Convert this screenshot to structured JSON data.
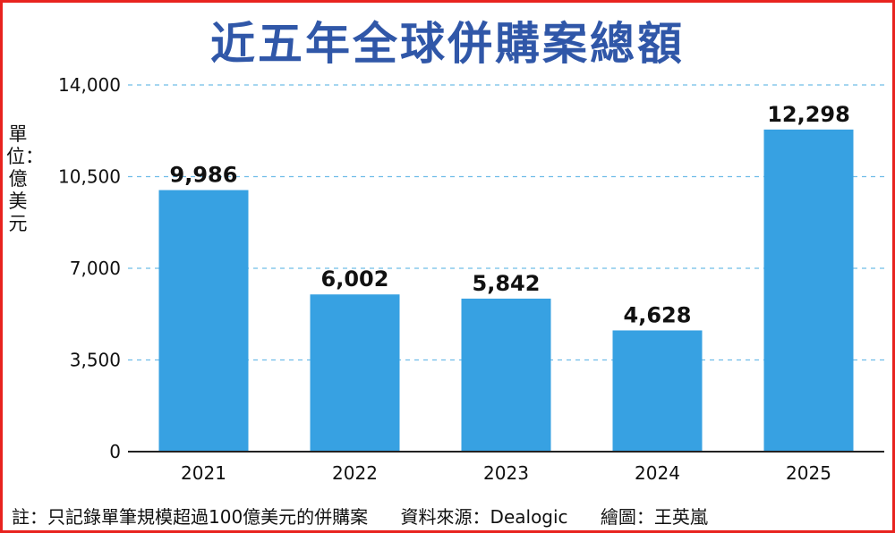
{
  "chart_data": {
    "type": "bar",
    "title": "近五年全球併購案總額",
    "ylabel": "單位：億美元",
    "xlabel": "",
    "categories": [
      "2021",
      "2022",
      "2023",
      "2024",
      "2025"
    ],
    "values": [
      9986,
      6002,
      5842,
      4628,
      12298
    ],
    "value_labels": [
      "9,986",
      "6,002",
      "5,842",
      "4,628",
      "12,298"
    ],
    "ylim": [
      0,
      14000
    ],
    "yticks": [
      0,
      3500,
      7000,
      10500,
      14000
    ],
    "ytick_labels": [
      "0",
      "3,500",
      "7,000",
      "10,500",
      "14,000"
    ],
    "grid": true,
    "bar_color": "#37a1e2"
  },
  "footer": {
    "note": "註：只記錄單筆規模超過100億美元的併購案",
    "source": "資料來源：Dealogic",
    "credit": "繪圖：王英嵐"
  },
  "colors": {
    "title": "#3057a8",
    "border": "#e8231f",
    "grid": "#6fbde8"
  }
}
